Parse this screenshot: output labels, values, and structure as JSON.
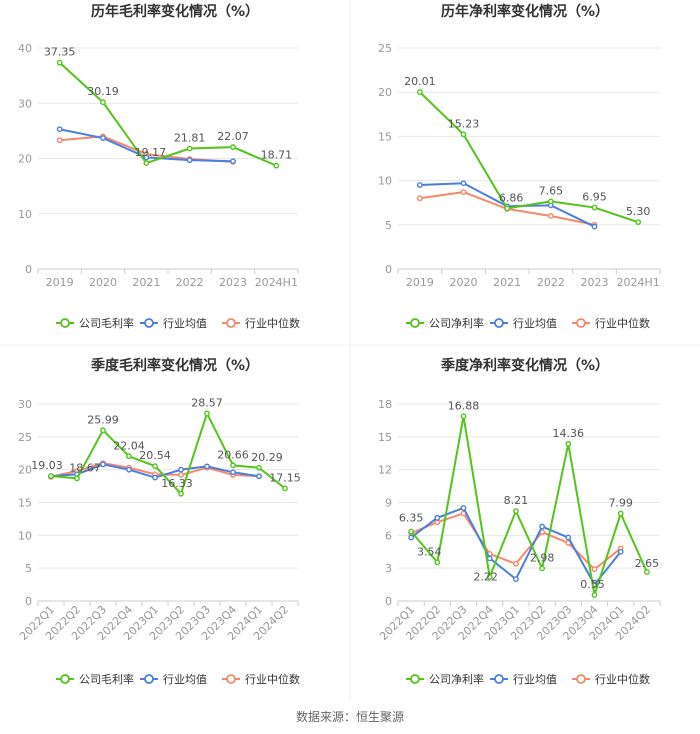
{
  "source": "数据来源：恒生聚源",
  "colors": {
    "company": "#52c41a",
    "avg": "#4a7ee0",
    "median": "#f5896a",
    "grid": "#e8e8e8",
    "axis": "#cccccc",
    "tick": "#999999",
    "label": "#555555"
  },
  "chart_data": [
    {
      "type": "line",
      "title": "历年毛利率变化情况（%）",
      "categories": [
        "2019",
        "2020",
        "2021",
        "2022",
        "2023",
        "2024H1"
      ],
      "ylim": [
        0,
        40
      ],
      "yticks": [
        0,
        10,
        20,
        30,
        40
      ],
      "rotate_x": false,
      "series": [
        {
          "name": "公司毛利率",
          "role": "company",
          "values": [
            37.35,
            30.19,
            19.17,
            21.81,
            22.07,
            18.71
          ],
          "labels": [
            "37.35",
            "30.19",
            "19.17",
            "21.81",
            "22.07",
            "18.71"
          ]
        },
        {
          "name": "行业均值",
          "role": "avg",
          "values": [
            25.3,
            23.7,
            20.2,
            19.7,
            19.5,
            null
          ]
        },
        {
          "name": "行业中位数",
          "role": "median",
          "values": [
            23.3,
            24.0,
            20.8,
            19.9,
            19.4,
            null
          ]
        }
      ]
    },
    {
      "type": "line",
      "title": "历年净利率变化情况（%）",
      "categories": [
        "2019",
        "2020",
        "2021",
        "2022",
        "2023",
        "2024H1"
      ],
      "ylim": [
        0,
        25
      ],
      "yticks": [
        0,
        5,
        10,
        15,
        20,
        25
      ],
      "rotate_x": false,
      "series": [
        {
          "name": "公司净利率",
          "role": "company",
          "values": [
            20.01,
            15.23,
            6.86,
            7.65,
            6.95,
            5.3
          ],
          "labels": [
            "20.01",
            "15.23",
            "6.86",
            "7.65",
            "6.95",
            "5.30"
          ]
        },
        {
          "name": "行业均值",
          "role": "avg",
          "values": [
            9.5,
            9.7,
            7.1,
            7.2,
            4.8,
            null
          ]
        },
        {
          "name": "行业中位数",
          "role": "median",
          "values": [
            8.0,
            8.7,
            6.8,
            6.0,
            5.0,
            null
          ]
        }
      ]
    },
    {
      "type": "line",
      "title": "季度毛利率变化情况（%）",
      "categories": [
        "2022Q1",
        "2022Q2",
        "2022Q3",
        "2022Q4",
        "2023Q1",
        "2023Q2",
        "2023Q3",
        "2023Q4",
        "2024Q1",
        "2024Q2"
      ],
      "ylim": [
        0,
        30
      ],
      "yticks": [
        0,
        5,
        10,
        15,
        20,
        25,
        30
      ],
      "rotate_x": true,
      "series": [
        {
          "name": "公司毛利率",
          "role": "company",
          "values": [
            19.03,
            18.67,
            25.99,
            22.04,
            20.54,
            16.33,
            28.57,
            20.66,
            20.29,
            17.15
          ],
          "labels": [
            "19.03",
            "18.67",
            "25.99",
            "22.04",
            "20.54",
            "16.33",
            "28.57",
            "20.66",
            "20.29",
            "17.15"
          ]
        },
        {
          "name": "行业均值",
          "role": "avg",
          "values": [
            19.0,
            19.3,
            20.8,
            20.0,
            18.8,
            20.0,
            20.5,
            19.6,
            19.0,
            null
          ]
        },
        {
          "name": "行业中位数",
          "role": "median",
          "values": [
            18.9,
            19.8,
            21.0,
            20.3,
            19.3,
            19.2,
            20.3,
            19.2,
            19.0,
            null
          ]
        }
      ]
    },
    {
      "type": "line",
      "title": "季度净利率变化情况（%）",
      "categories": [
        "2022Q1",
        "2022Q2",
        "2022Q3",
        "2022Q4",
        "2023Q1",
        "2023Q2",
        "2023Q3",
        "2023Q4",
        "2024Q1",
        "2024Q2"
      ],
      "ylim": [
        0,
        18
      ],
      "yticks": [
        0,
        3,
        6,
        9,
        12,
        15,
        18
      ],
      "rotate_x": true,
      "series": [
        {
          "name": "公司净利率",
          "role": "company",
          "values": [
            6.35,
            3.54,
            16.88,
            2.22,
            8.21,
            2.98,
            14.36,
            0.55,
            7.99,
            2.65
          ],
          "labels": [
            "6.35",
            "3.54",
            "16.88",
            "2.22",
            "8.21",
            "2.98",
            "14.36",
            "0.55",
            "7.99",
            "2.65"
          ]
        },
        {
          "name": "行业均值",
          "role": "avg",
          "values": [
            5.8,
            7.6,
            8.5,
            3.9,
            2.0,
            6.8,
            5.8,
            1.5,
            4.5,
            null
          ]
        },
        {
          "name": "行业中位数",
          "role": "median",
          "values": [
            6.2,
            7.2,
            8.0,
            4.3,
            3.4,
            6.3,
            5.3,
            2.9,
            4.8,
            null
          ]
        }
      ]
    }
  ]
}
